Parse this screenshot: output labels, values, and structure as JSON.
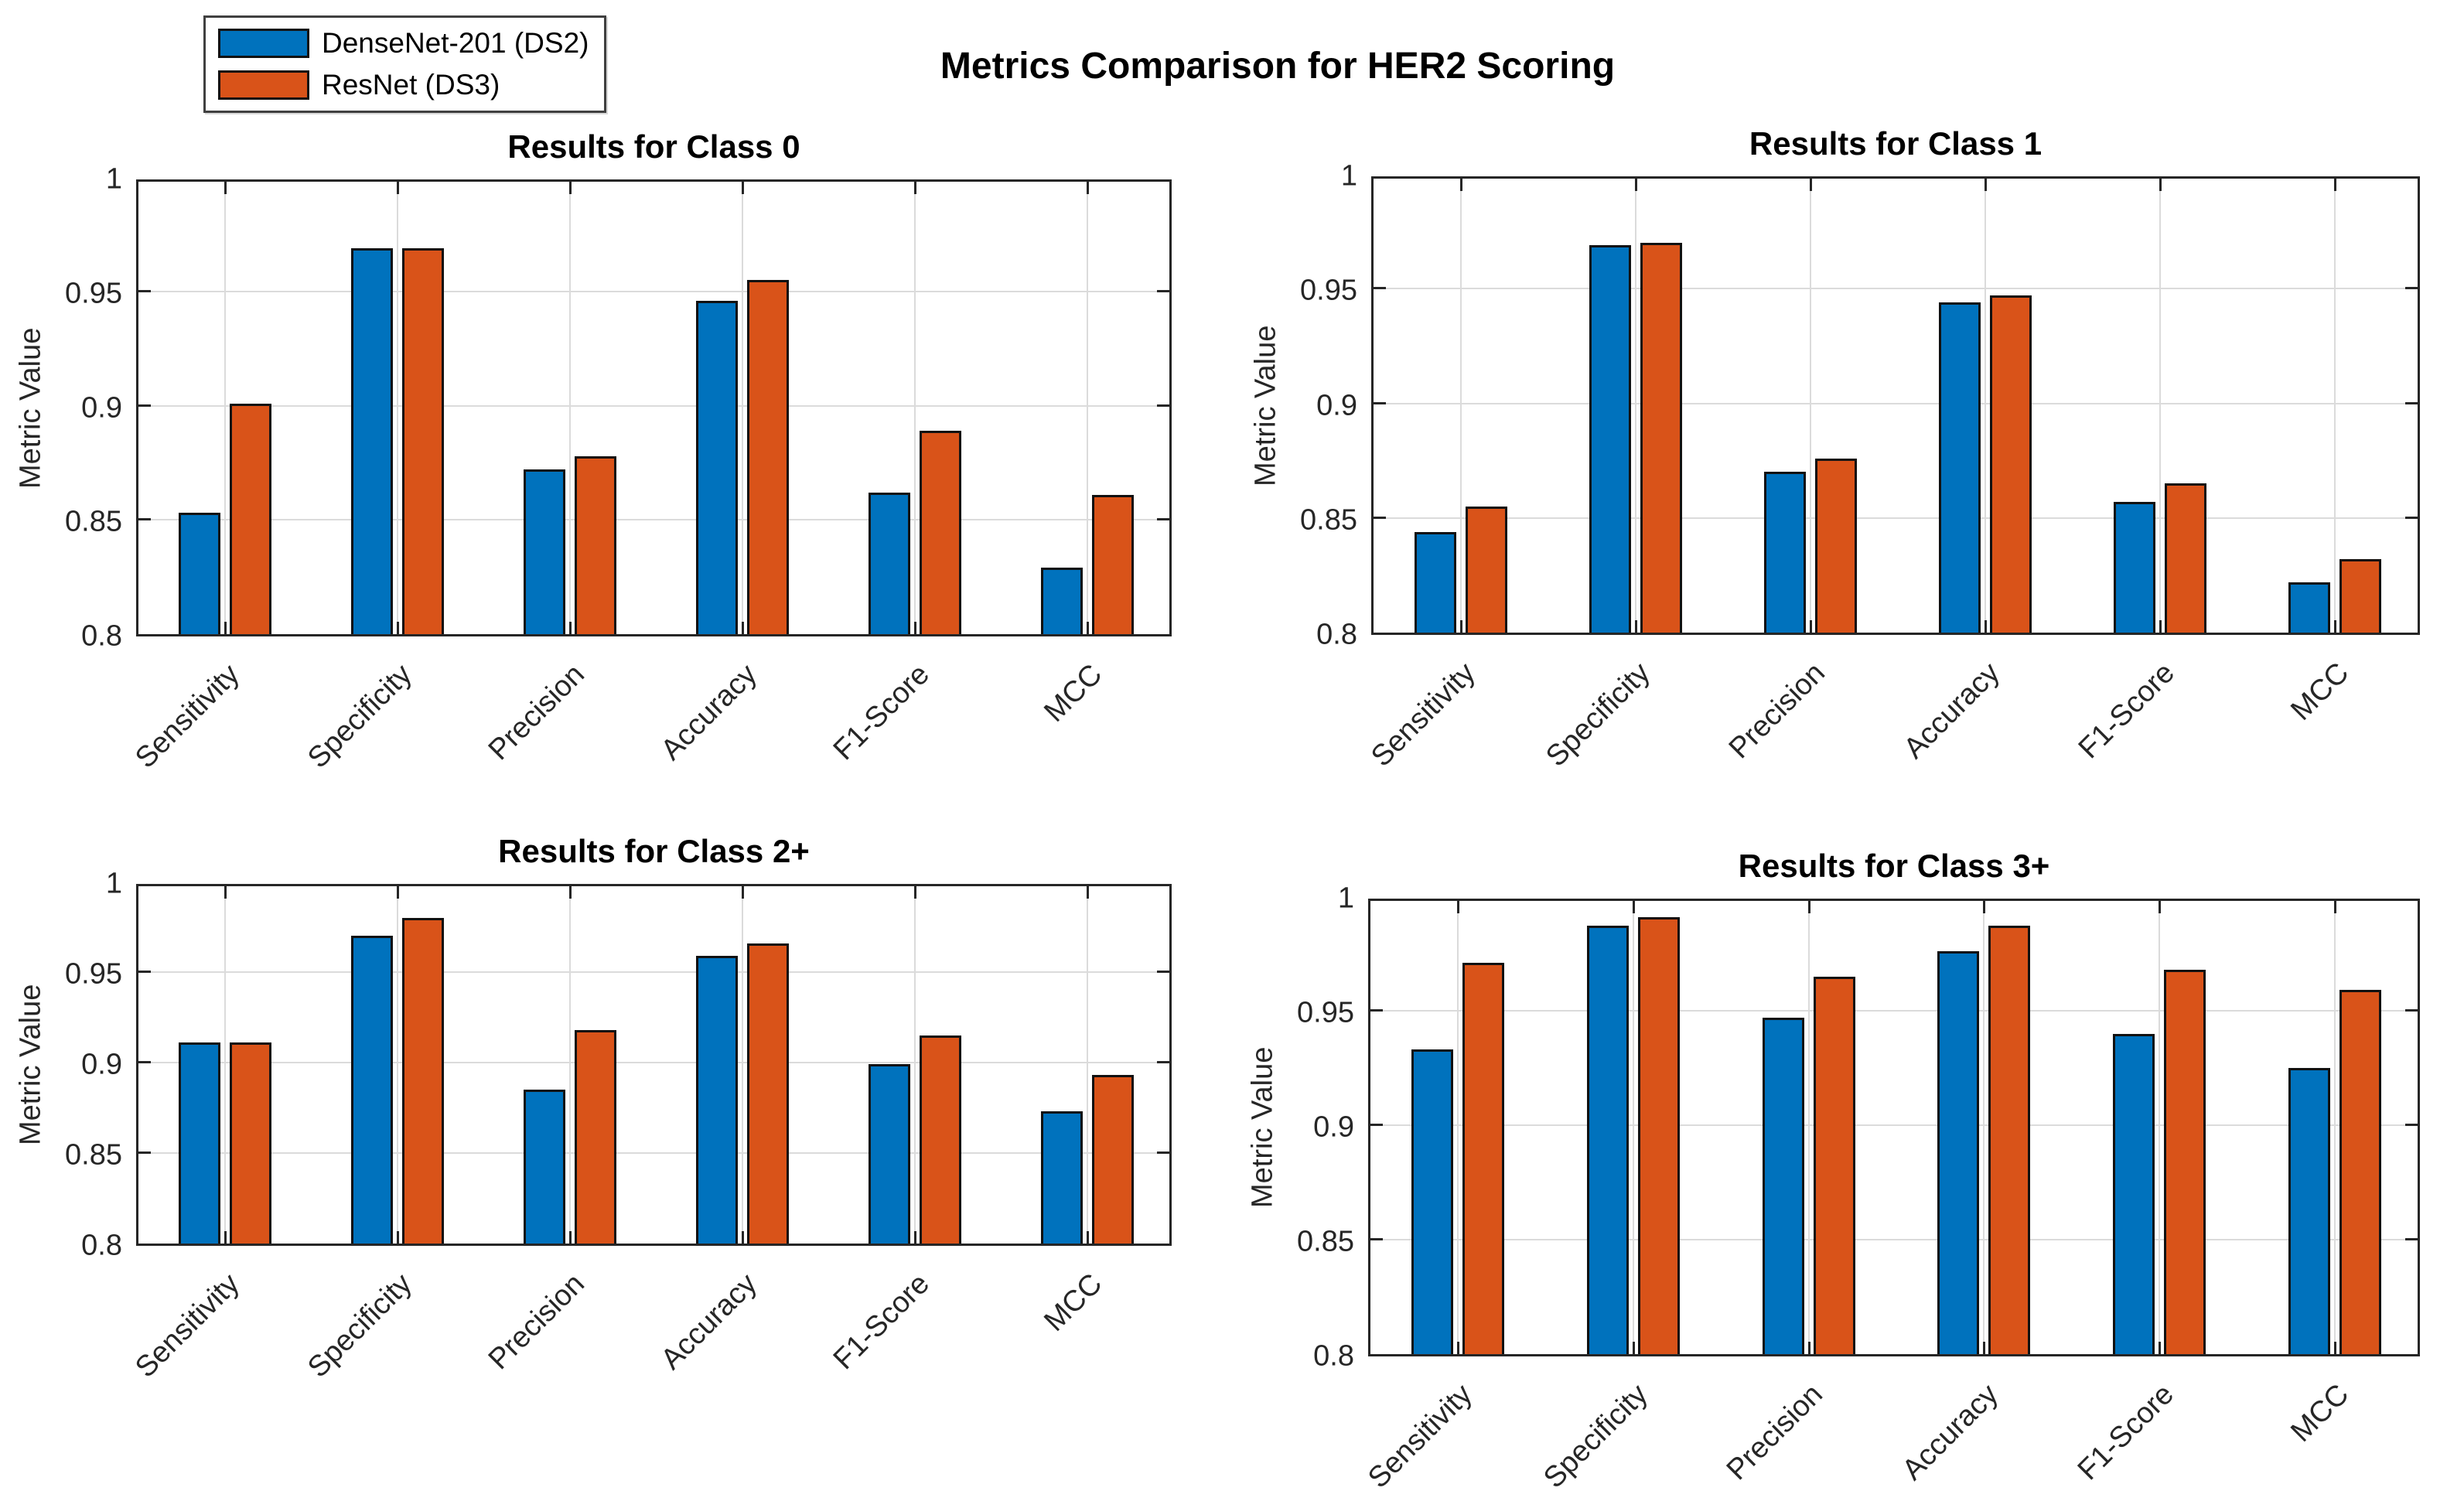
{
  "figure_title": "Metrics Comparison for HER2 Scoring",
  "legend": {
    "items": [
      {
        "label": "DenseNet-201 (DS2)",
        "color": "#0072BD"
      },
      {
        "label": "ResNet (DS3)",
        "color": "#D95319"
      }
    ]
  },
  "colors": {
    "bar_blue": "#0072BD",
    "bar_orange": "#D95319",
    "bar_edge": "#111111",
    "grid": "#DBDBDB",
    "axis": "#262626",
    "tick_text": "#262626"
  },
  "axis": {
    "ylabel": "Metric Value",
    "yticks": [
      0.8,
      0.85,
      0.9,
      0.95,
      1.0
    ],
    "ytick_labels": [
      "0.8",
      "0.85",
      "0.9",
      "0.95",
      "1"
    ],
    "ylim": [
      0.8,
      1.0
    ]
  },
  "categories": [
    "Sensitivity",
    "Specificity",
    "Precision",
    "Accuracy",
    "F1-Score",
    "MCC"
  ],
  "chart_data": [
    {
      "type": "bar",
      "title": "Results for Class 0",
      "ylabel": "Metric Value",
      "categories": [
        "Sensitivity",
        "Specificity",
        "Precision",
        "Accuracy",
        "F1-Score",
        "MCC"
      ],
      "series": [
        {
          "name": "DenseNet-201 (DS2)",
          "values": [
            0.853,
            0.969,
            0.872,
            0.946,
            0.862,
            0.829
          ]
        },
        {
          "name": "ResNet (DS3)",
          "values": [
            0.901,
            0.969,
            0.878,
            0.955,
            0.889,
            0.861
          ]
        }
      ],
      "ylim": [
        0.8,
        1.0
      ],
      "yticks": [
        0.8,
        0.85,
        0.9,
        0.95,
        1.0
      ],
      "grid": true,
      "legend_position": "top-left-of-figure"
    },
    {
      "type": "bar",
      "title": "Results for Class 1",
      "ylabel": "Metric Value",
      "categories": [
        "Sensitivity",
        "Specificity",
        "Precision",
        "Accuracy",
        "F1-Score",
        "MCC"
      ],
      "series": [
        {
          "name": "DenseNet-201 (DS2)",
          "values": [
            0.844,
            0.969,
            0.87,
            0.944,
            0.857,
            0.822
          ]
        },
        {
          "name": "ResNet (DS3)",
          "values": [
            0.855,
            0.97,
            0.876,
            0.947,
            0.865,
            0.832
          ]
        }
      ],
      "ylim": [
        0.8,
        1.0
      ],
      "yticks": [
        0.8,
        0.85,
        0.9,
        0.95,
        1.0
      ],
      "grid": true
    },
    {
      "type": "bar",
      "title": "Results for Class 2+",
      "ylabel": "Metric Value",
      "categories": [
        "Sensitivity",
        "Specificity",
        "Precision",
        "Accuracy",
        "F1-Score",
        "MCC"
      ],
      "series": [
        {
          "name": "DenseNet-201 (DS2)",
          "values": [
            0.911,
            0.97,
            0.885,
            0.959,
            0.899,
            0.873
          ]
        },
        {
          "name": "ResNet (DS3)",
          "values": [
            0.911,
            0.98,
            0.918,
            0.966,
            0.915,
            0.893
          ]
        }
      ],
      "ylim": [
        0.8,
        1.0
      ],
      "yticks": [
        0.8,
        0.85,
        0.9,
        0.95,
        1.0
      ],
      "grid": true
    },
    {
      "type": "bar",
      "title": "Results for Class 3+",
      "ylabel": "Metric Value",
      "categories": [
        "Sensitivity",
        "Specificity",
        "Precision",
        "Accuracy",
        "F1-Score",
        "MCC"
      ],
      "series": [
        {
          "name": "DenseNet-201 (DS2)",
          "values": [
            0.933,
            0.987,
            0.947,
            0.976,
            0.94,
            0.925
          ]
        },
        {
          "name": "ResNet (DS3)",
          "values": [
            0.971,
            0.991,
            0.965,
            0.987,
            0.968,
            0.959
          ]
        }
      ],
      "ylim": [
        0.8,
        1.0
      ],
      "yticks": [
        0.8,
        0.85,
        0.9,
        0.95,
        1.0
      ],
      "grid": true
    }
  ]
}
